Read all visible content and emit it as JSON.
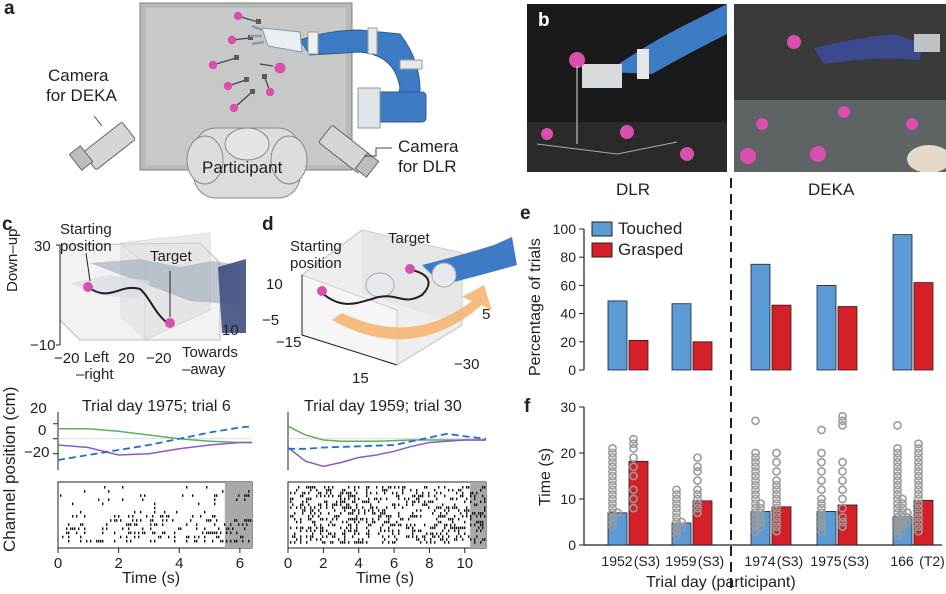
{
  "panels": {
    "a": {
      "label": "a",
      "camera_deka": [
        "Camera",
        "for DEKA"
      ],
      "camera_dlr": [
        "Camera",
        "for DLR"
      ],
      "participant": "Participant"
    },
    "b": {
      "label": "b",
      "left_caption": "DLR",
      "right_caption": "DEKA"
    },
    "c": {
      "label": "c",
      "starting_position": [
        "Starting",
        "position"
      ],
      "target": "Target",
      "axis_down_up": "Down–up",
      "axis_left_right": [
        "Left",
        "–right"
      ],
      "axis_towards_away": [
        "Towards",
        "–away"
      ],
      "ticks": {
        "du_top": "30",
        "du_bottom": "−10",
        "lr_left": "−20",
        "lr_right": "20",
        "ta_left": "−20",
        "ta_right": "10"
      },
      "trial_title": "Trial day 1975; trial 6",
      "time_label": "Time (s)",
      "x_ticks": [
        "0",
        "2",
        "4",
        "6"
      ],
      "y_ticks": [
        "20",
        "0",
        "−20"
      ]
    },
    "d": {
      "label": "d",
      "starting_position": [
        "Starting",
        "position"
      ],
      "target": "Target",
      "ticks": {
        "v10": "10",
        "vm5": "−5",
        "m15": "−15",
        "p15": "15",
        "m30": "−30",
        "p5": "5"
      },
      "trial_title": "Trial day 1959; trial 30",
      "time_label": "Time (s)",
      "x_ticks": [
        "0",
        "2",
        "4",
        "6",
        "8",
        "10"
      ]
    },
    "e": {
      "label": "e",
      "ylabel": "Percentage of trials",
      "legend": [
        "Touched",
        "Grasped"
      ]
    },
    "f": {
      "label": "f",
      "ylabel": "Time (s)",
      "xlabel": "Trial day (participant)",
      "categories": [
        "1952",
        "(S3)",
        "1959",
        "(S3)",
        "1974",
        "(S3)",
        "1975",
        "(S3)",
        "166",
        "(T2)"
      ]
    }
  },
  "shared_ylabel": "Channel position (cm)",
  "colors": {
    "touched": "#5b9bd5",
    "grasped": "#d62027",
    "robot_blue": "#4a86c5",
    "target_pink": "#d94fae",
    "green": "#5bb15b",
    "purple": "#8a5ac6",
    "dashed_blue": "#1f6fd1"
  },
  "chart_data": [
    {
      "type": "bar",
      "title": "",
      "ylabel": "Percentage of trials",
      "ylim": [
        0,
        100
      ],
      "y_ticks": [
        "0",
        "20",
        "40",
        "60",
        "80",
        "100"
      ],
      "categories": [
        "1952 (S3)",
        "1959 (S3)",
        "1974 (S3)",
        "1975 (S3)",
        "166 (T2)"
      ],
      "group_labels": [
        "DLR",
        "DEKA"
      ],
      "legend_position": "top-left",
      "series": [
        {
          "name": "Touched",
          "values": [
            49,
            47,
            75,
            60,
            96
          ]
        },
        {
          "name": "Grasped",
          "values": [
            21,
            20,
            46,
            45,
            62
          ]
        }
      ]
    },
    {
      "type": "bar",
      "title": "",
      "xlabel": "Trial day (participant)",
      "ylabel": "Time (s)",
      "ylim": [
        0,
        30
      ],
      "y_ticks": [
        "0",
        "10",
        "20",
        "30"
      ],
      "categories": [
        "1952 (S3)",
        "1959 (S3)",
        "1974 (S3)",
        "1975 (S3)",
        "166 (T2)"
      ],
      "series": [
        {
          "name": "Touched",
          "values": [
            7,
            4.8,
            7.3,
            7.3,
            6.2
          ],
          "points": [
            [
              4,
              5,
              6,
              7,
              7,
              8,
              9,
              10,
              11,
              12,
              13,
              14,
              15,
              16,
              17,
              18,
              19,
              20,
              21
            ],
            [
              2,
              3,
              4,
              4,
              5,
              5,
              6,
              7,
              8,
              9,
              10,
              11,
              12
            ],
            [
              3,
              4,
              4,
              5,
              5,
              6,
              6,
              7,
              7,
              8,
              8,
              9,
              9,
              10,
              11,
              12,
              13,
              14,
              15,
              16,
              17,
              18,
              19,
              20,
              27
            ],
            [
              3,
              4,
              5,
              6,
              7,
              8,
              9,
              10,
              12,
              14,
              16,
              18,
              20,
              25
            ],
            [
              2,
              3,
              3,
              4,
              4,
              5,
              5,
              5,
              6,
              6,
              6,
              7,
              7,
              7,
              8,
              8,
              9,
              9,
              10,
              10,
              11,
              12,
              13,
              14,
              15,
              16,
              17,
              18,
              19,
              20,
              21,
              26
            ]
          ]
        },
        {
          "name": "Grasped",
          "values": [
            18.2,
            9.6,
            8.3,
            8.7,
            9.7
          ],
          "points": [
            [
              8,
              10,
              12,
              15,
              17,
              19,
              21,
              22,
              23
            ],
            [
              7,
              8,
              9,
              10,
              11,
              12,
              14,
              16,
              17,
              19
            ],
            [
              3,
              4,
              5,
              6,
              7,
              8,
              9,
              10,
              11,
              12,
              13,
              14,
              16,
              18,
              20
            ],
            [
              4,
              5,
              6,
              8,
              10,
              12,
              14,
              16,
              18,
              26,
              27,
              28
            ],
            [
              3,
              4,
              5,
              6,
              7,
              8,
              9,
              10,
              11,
              12,
              13,
              14,
              15,
              16,
              17,
              18,
              19,
              20,
              21,
              22
            ]
          ]
        }
      ]
    },
    {
      "type": "line",
      "title": "Trial day 1975; trial 6",
      "xlabel": "Time (s)",
      "ylabel": "Channel position (cm)",
      "xlim": [
        0,
        6.4
      ],
      "ylim": [
        -25,
        15
      ],
      "x_ticks": [
        "0",
        "2",
        "4",
        "6"
      ],
      "y_ticks": [
        "20",
        "0",
        "−20"
      ],
      "series": [
        {
          "style": "solid green",
          "x": [
            0,
            1,
            2,
            3,
            4,
            5,
            6,
            6.4
          ],
          "y": [
            8,
            8,
            6,
            3,
            0,
            -2,
            -3,
            -3
          ]
        },
        {
          "style": "solid purple",
          "x": [
            0,
            1,
            2,
            3,
            4,
            5,
            6,
            6.4
          ],
          "y": [
            -5,
            -7,
            -13,
            -12,
            -8,
            -5,
            -3,
            -3
          ]
        },
        {
          "style": "dashed blue",
          "x": [
            0,
            1,
            2,
            3,
            4,
            5,
            6,
            6.4
          ],
          "y": [
            -17,
            -13,
            -9,
            -5,
            0,
            5,
            9,
            10
          ]
        }
      ]
    },
    {
      "type": "line",
      "title": "Trial day 1959; trial 30",
      "xlabel": "Time (s)",
      "xlim": [
        0,
        11.2
      ],
      "ylim": [
        -25,
        15
      ],
      "x_ticks": [
        "0",
        "2",
        "4",
        "6",
        "8",
        "10"
      ],
      "series": [
        {
          "style": "solid green",
          "x": [
            0,
            1,
            2,
            3,
            5,
            7,
            9,
            10,
            11.2
          ],
          "y": [
            10,
            3,
            -1,
            -2,
            -2,
            -1,
            -1,
            -1,
            -1
          ]
        },
        {
          "style": "solid purple",
          "x": [
            0,
            1,
            2,
            3,
            4,
            5,
            6,
            7,
            8,
            10,
            11.2
          ],
          "y": [
            -7,
            -18,
            -22,
            -19,
            -15,
            -13,
            -10,
            -6,
            -3,
            -1,
            -1
          ]
        },
        {
          "style": "dashed blue",
          "x": [
            0,
            1,
            2,
            4,
            6,
            7,
            8,
            9,
            10,
            11.2
          ],
          "y": [
            -8,
            -8,
            -7,
            -6,
            -5,
            -2,
            1,
            4,
            2,
            0
          ]
        }
      ]
    }
  ]
}
